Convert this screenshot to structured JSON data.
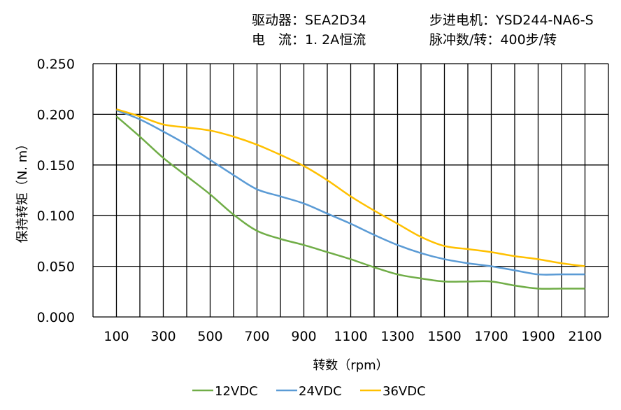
{
  "header": {
    "driver": "驱动器：SEA2D34",
    "current": "电　流：1. 2A恒流",
    "motor": "步进电机：YSD244-NA6-S",
    "pulses": "脉冲数/转：400步/转"
  },
  "chart_data": {
    "type": "line",
    "title": "",
    "xlabel": "转数（rpm）",
    "ylabel": "保持转矩（N. m）",
    "xlim": [
      0,
      2200
    ],
    "ylim": [
      0,
      0.25
    ],
    "x_ticks": [
      "100",
      "300",
      "500",
      "700",
      "900",
      "1100",
      "1300",
      "1500",
      "1700",
      "1900",
      "2100"
    ],
    "y_ticks": [
      "0.000",
      "0.050",
      "0.100",
      "0.150",
      "0.200",
      "0.250"
    ],
    "grid": true,
    "legend_position": "bottom",
    "x": [
      100,
      200,
      300,
      400,
      500,
      600,
      700,
      800,
      900,
      1000,
      1100,
      1200,
      1300,
      1400,
      1500,
      1600,
      1700,
      1800,
      1900,
      2000,
      2100
    ],
    "series": [
      {
        "name": "12VDC",
        "color": "#70ad47",
        "values": [
          0.198,
          0.178,
          0.157,
          0.139,
          0.121,
          0.101,
          0.085,
          0.077,
          0.071,
          0.064,
          0.057,
          0.049,
          0.042,
          0.038,
          0.035,
          0.035,
          0.035,
          0.031,
          0.028,
          0.028,
          0.028
        ]
      },
      {
        "name": "24VDC",
        "color": "#5b9bd5",
        "values": [
          0.204,
          0.195,
          0.183,
          0.17,
          0.155,
          0.14,
          0.126,
          0.119,
          0.112,
          0.102,
          0.092,
          0.081,
          0.071,
          0.063,
          0.057,
          0.053,
          0.05,
          0.046,
          0.042,
          0.042,
          0.042
        ]
      },
      {
        "name": "36VDC",
        "color": "#ffc000",
        "values": [
          0.205,
          0.198,
          0.19,
          0.187,
          0.184,
          0.178,
          0.17,
          0.16,
          0.149,
          0.135,
          0.119,
          0.105,
          0.092,
          0.079,
          0.07,
          0.067,
          0.064,
          0.06,
          0.057,
          0.053,
          0.05
        ]
      }
    ]
  }
}
